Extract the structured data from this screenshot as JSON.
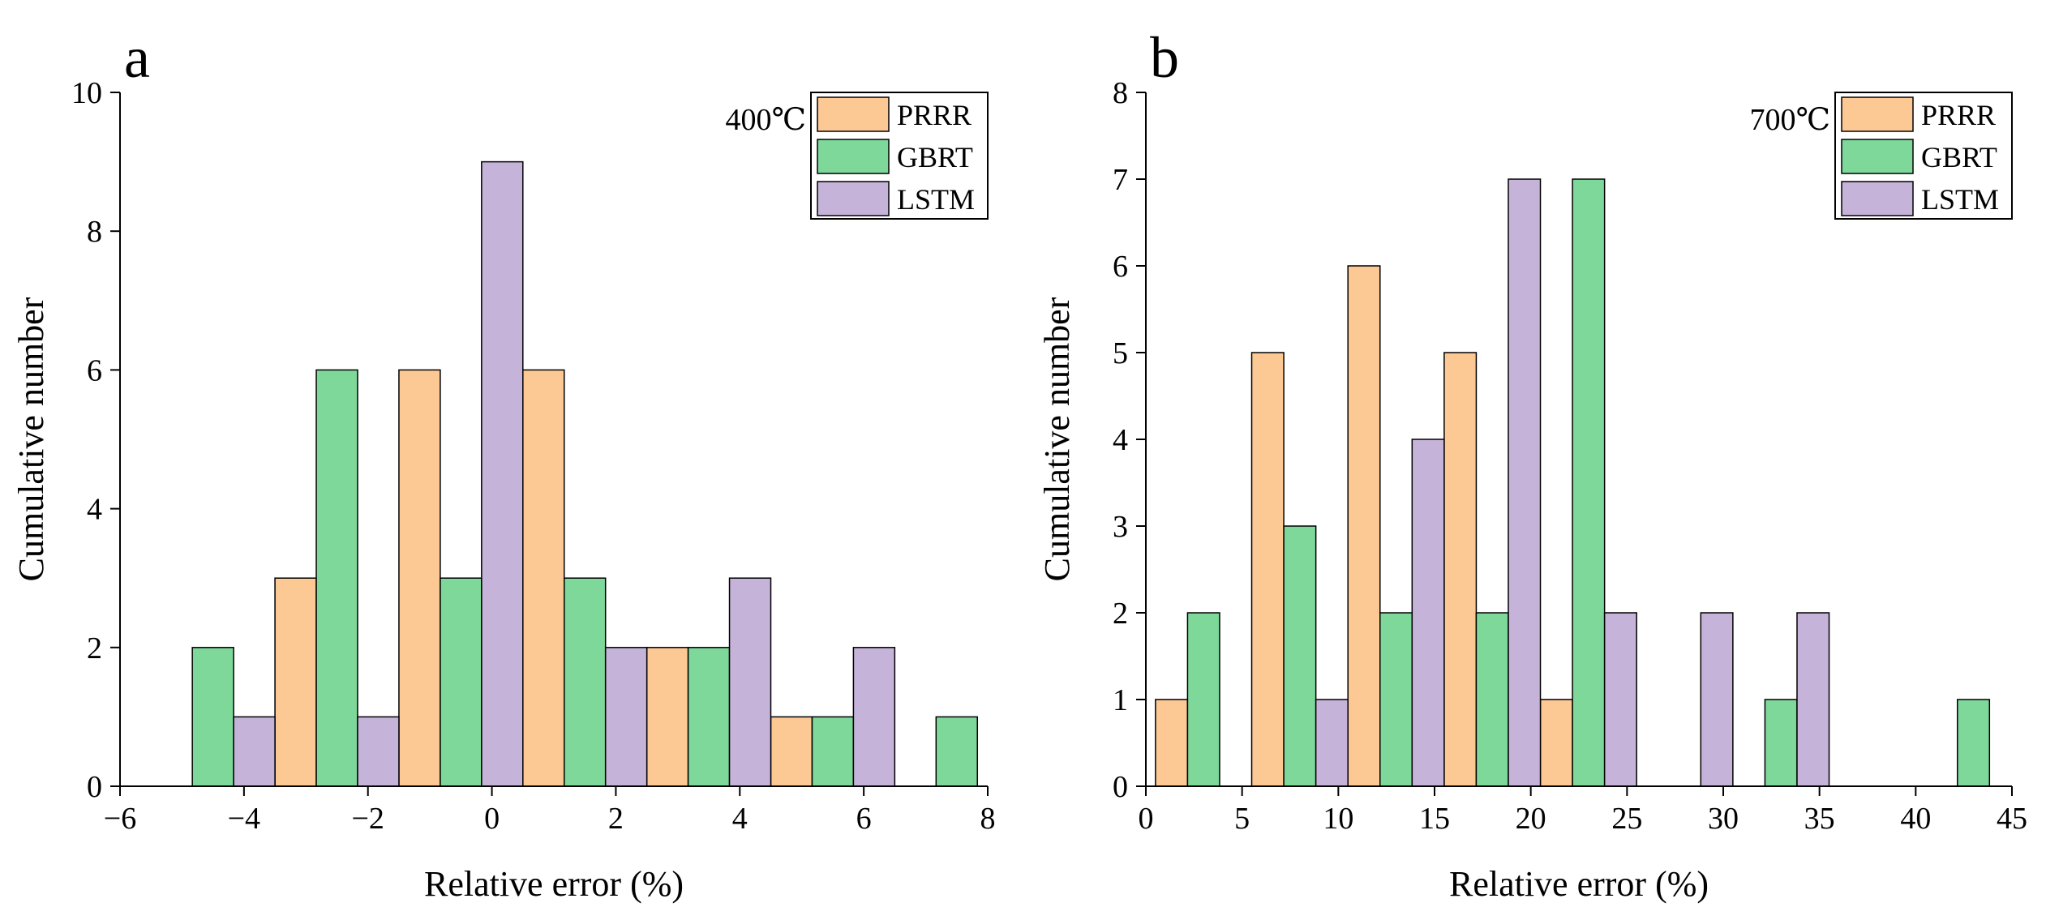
{
  "chart_data": [
    {
      "type": "bar",
      "panel_label": "a",
      "annotation": "400℃",
      "xlabel": "Relative error (%)",
      "ylabel": "Cumulative number",
      "xlim": [
        -6,
        8
      ],
      "ylim": [
        0,
        10
      ],
      "xticks": [
        -6,
        -4,
        -2,
        0,
        2,
        4,
        6,
        8
      ],
      "xtick_labels": [
        "−6",
        "−4",
        "−2",
        "0",
        "2",
        "4",
        "6",
        "8"
      ],
      "yticks": [
        0,
        2,
        4,
        6,
        8,
        10
      ],
      "ytick_labels": [
        "0",
        "2",
        "4",
        "6",
        "8",
        "10"
      ],
      "bin_width": 2,
      "bin_starts": [
        -5.5,
        -3.5,
        -1.5,
        0.5,
        2.5,
        4.5,
        6.5
      ],
      "legend_position": "top-right",
      "series": [
        {
          "name": "PRRR",
          "color": "#FCC995",
          "values": [
            0,
            3,
            6,
            6,
            2,
            1,
            0
          ]
        },
        {
          "name": "GBRT",
          "color": "#7ED89A",
          "values": [
            2,
            6,
            3,
            3,
            2,
            1,
            1
          ]
        },
        {
          "name": "LSTM",
          "color": "#C5B3D9",
          "values": [
            1,
            1,
            9,
            2,
            3,
            2,
            0
          ]
        }
      ]
    },
    {
      "type": "bar",
      "panel_label": "b",
      "annotation": "700℃",
      "xlabel": "Relative error (%)",
      "ylabel": "Cumulative number",
      "xlim": [
        0,
        45
      ],
      "ylim": [
        0,
        8
      ],
      "xticks": [
        0,
        5,
        10,
        15,
        20,
        25,
        30,
        35,
        40,
        45
      ],
      "xtick_labels": [
        "0",
        "5",
        "10",
        "15",
        "20",
        "25",
        "30",
        "35",
        "40",
        "45"
      ],
      "yticks": [
        0,
        1,
        2,
        3,
        4,
        5,
        6,
        7,
        8
      ],
      "ytick_labels": [
        "0",
        "1",
        "2",
        "3",
        "4",
        "5",
        "6",
        "7",
        "8"
      ],
      "bin_width": 5,
      "bin_starts": [
        0.5,
        5.5,
        10.5,
        15.5,
        20.5,
        25.5,
        30.5,
        35.5,
        40.5
      ],
      "legend_position": "top-right",
      "series": [
        {
          "name": "PRRR",
          "color": "#FCC995",
          "values": [
            1,
            5,
            6,
            5,
            1,
            0,
            0,
            0,
            0
          ]
        },
        {
          "name": "GBRT",
          "color": "#7ED89A",
          "values": [
            2,
            3,
            2,
            2,
            7,
            0,
            1,
            0,
            1
          ]
        },
        {
          "name": "LSTM",
          "color": "#C5B3D9",
          "values": [
            0,
            1,
            4,
            7,
            2,
            2,
            2,
            0,
            0
          ]
        }
      ]
    }
  ]
}
